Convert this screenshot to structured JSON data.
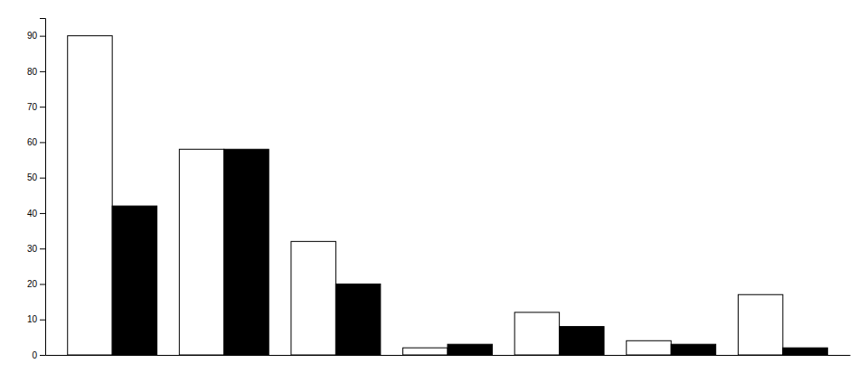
{
  "chart_data": {
    "type": "bar",
    "categories": [
      null,
      null,
      null,
      null,
      null,
      null,
      null
    ],
    "series": [
      {
        "color": "#ffffff",
        "values": [
          90,
          58,
          32,
          2,
          12,
          4,
          17
        ]
      },
      {
        "color": "#000000",
        "values": [
          42,
          58,
          20,
          3,
          8,
          3,
          2
        ]
      }
    ],
    "ylim": [
      0,
      95
    ],
    "yticks": [
      0,
      10,
      20,
      30,
      40,
      50,
      60,
      70,
      80,
      90
    ],
    "grid": false,
    "tick_labels": "y"
  }
}
